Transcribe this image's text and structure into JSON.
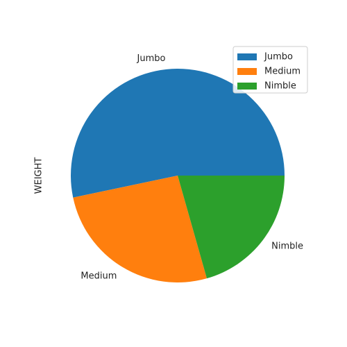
{
  "chart_data": {
    "type": "pie",
    "ylabel": "WEIGHT",
    "categories": [
      "Jumbo",
      "Medium",
      "Nimble"
    ],
    "values": [
      53.3,
      26.1,
      20.6
    ],
    "colors": [
      "#1f77b4",
      "#ff7f0e",
      "#2ca02c"
    ],
    "start_angle_deg": 0,
    "direction": "counterclockwise",
    "legend": {
      "placement": "top-right",
      "entries": [
        "Jumbo",
        "Medium",
        "Nimble"
      ]
    }
  }
}
